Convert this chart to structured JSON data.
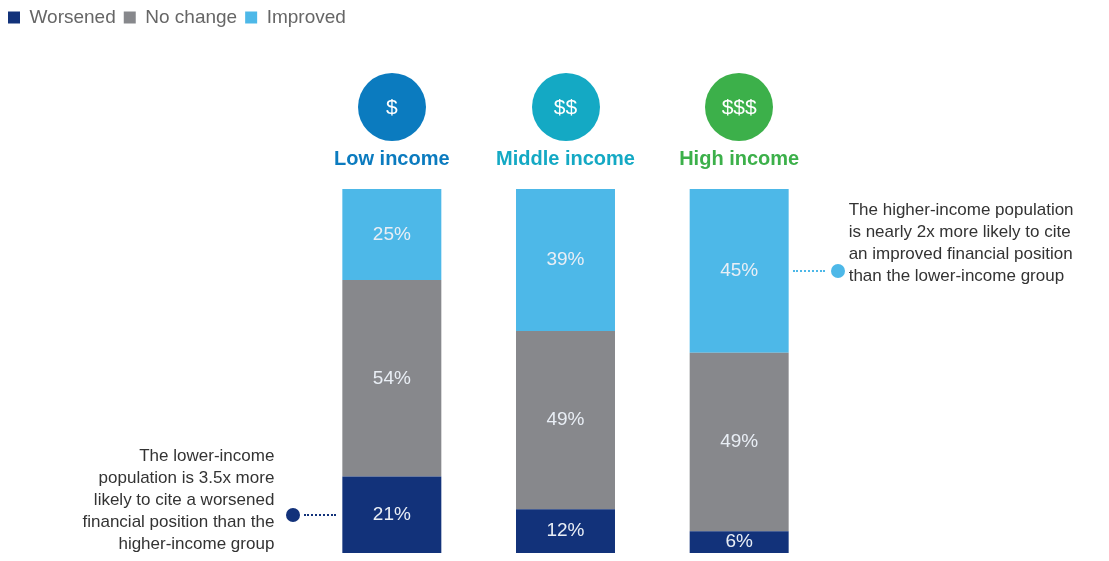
{
  "chart_data": {
    "type": "bar",
    "categories": [
      "Low income",
      "Middle income",
      "High income"
    ],
    "series": [
      {
        "name": "Worsened",
        "color": "#12327a",
        "values": [
          21,
          12,
          6
        ],
        "value_labels": [
          "21%",
          "12%",
          "6%"
        ]
      },
      {
        "name": "No change",
        "color": "#87888c",
        "values": [
          54,
          49,
          49
        ],
        "value_labels": [
          "54%",
          "49%",
          "49%"
        ]
      },
      {
        "name": "Improved",
        "color": "#4db8e8",
        "values": [
          25,
          39,
          45
        ],
        "value_labels": [
          "25%",
          "39%",
          "45%"
        ]
      }
    ],
    "stacked": true,
    "ylim": [
      0,
      100
    ],
    "tick_labels": "x",
    "grid": false,
    "legend": "top left",
    "annotations": [
      "$",
      "$$",
      "$$$",
      "The lower-income population is 3.5x more likely to cite a worsened financial position than the higher-income group",
      "The higher-income population is nearly 2x more likely to cite an improved financial position than the lower-income group"
    ]
  }
}
